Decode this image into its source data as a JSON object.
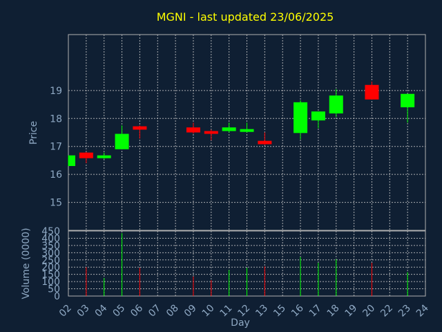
{
  "chart_data": {
    "type": "candlestick",
    "title": "MGNI - last updated 23/06/2025",
    "colors": {
      "up": "#00ff00",
      "down": "#ff0000",
      "title": "#ffff00",
      "axis_text": "#8fa9c4",
      "background": "#0f1f33"
    },
    "price_panel": {
      "ylabel": "Price",
      "ylim": [
        14,
        21
      ],
      "yticks": [
        15,
        16,
        17,
        18,
        19
      ],
      "grid": true
    },
    "volume_panel": {
      "ylabel": "Volume (0000)",
      "ylim": [
        0,
        450
      ],
      "yticks": [
        0,
        50,
        100,
        150,
        200,
        250,
        300,
        350,
        400,
        450
      ],
      "grid": true
    },
    "xlabel": "Day",
    "x_ticks": [
      "02",
      "03",
      "04",
      "05",
      "06",
      "07",
      "08",
      "09",
      "10",
      "11",
      "12",
      "13",
      "15",
      "16",
      "17",
      "18",
      "19",
      "20",
      "22",
      "23",
      "24"
    ],
    "candles": [
      {
        "day": "02",
        "open": 16.3,
        "high": 16.68,
        "low": 16.3,
        "close": 16.68,
        "volume": 0
      },
      {
        "day": "03",
        "open": 16.78,
        "high": 16.8,
        "low": 16.4,
        "close": 16.58,
        "volume": 200
      },
      {
        "day": "04",
        "open": 16.58,
        "high": 16.78,
        "low": 16.55,
        "close": 16.68,
        "volume": 125
      },
      {
        "day": "05",
        "open": 16.9,
        "high": 17.75,
        "low": 16.9,
        "close": 17.45,
        "volume": 435
      },
      {
        "day": "06",
        "open": 17.72,
        "high": 17.75,
        "low": 17.28,
        "close": 17.6,
        "volume": 195
      },
      {
        "day": "09",
        "open": 17.68,
        "high": 17.85,
        "low": 17.45,
        "close": 17.5,
        "volume": 135
      },
      {
        "day": "10",
        "open": 17.55,
        "high": 17.6,
        "low": 17.22,
        "close": 17.45,
        "volume": 110
      },
      {
        "day": "11",
        "open": 17.55,
        "high": 17.85,
        "low": 17.5,
        "close": 17.68,
        "volume": 180
      },
      {
        "day": "12",
        "open": 17.52,
        "high": 17.85,
        "low": 17.5,
        "close": 17.62,
        "volume": 195
      },
      {
        "day": "13",
        "open": 17.2,
        "high": 17.5,
        "low": 17.05,
        "close": 17.08,
        "volume": 205
      },
      {
        "day": "16",
        "open": 17.48,
        "high": 18.65,
        "low": 17.25,
        "close": 18.58,
        "volume": 270
      },
      {
        "day": "17",
        "open": 17.93,
        "high": 18.25,
        "low": 17.65,
        "close": 18.25,
        "volume": 230
      },
      {
        "day": "18",
        "open": 18.18,
        "high": 19.05,
        "low": 18.05,
        "close": 18.82,
        "volume": 255
      },
      {
        "day": "20",
        "open": 19.2,
        "high": 19.32,
        "low": 18.68,
        "close": 18.68,
        "volume": 230
      },
      {
        "day": "23",
        "open": 18.4,
        "high": 18.88,
        "low": 17.85,
        "close": 18.88,
        "volume": 165
      }
    ]
  }
}
